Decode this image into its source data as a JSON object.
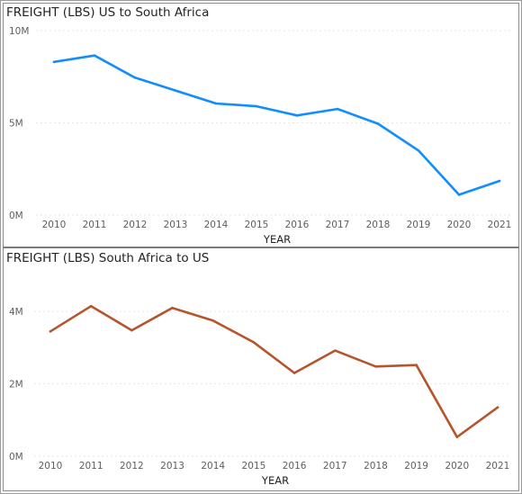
{
  "chart_data": [
    {
      "type": "line",
      "title": "FREIGHT (LBS) US to South Africa",
      "xlabel": "YEAR",
      "ylabel": "",
      "categories": [
        "2010",
        "2011",
        "2012",
        "2013",
        "2014",
        "2015",
        "2016",
        "2017",
        "2018",
        "2019",
        "2020",
        "2021"
      ],
      "series": [
        {
          "values": [
            8300000,
            8650000,
            7450000,
            6750000,
            6050000,
            5900000,
            5400000,
            5750000,
            4950000,
            3500000,
            1100000,
            1850000
          ]
        }
      ],
      "ylim": [
        0,
        10000000
      ],
      "yticks": [
        0,
        5000000,
        10000000
      ],
      "ytick_labels": [
        "0M",
        "5M",
        "10M"
      ],
      "grid": true,
      "color": "#118DFF"
    },
    {
      "type": "line",
      "title": "FREIGHT (LBS) South Africa to US",
      "xlabel": "YEAR",
      "ylabel": "",
      "categories": [
        "2010",
        "2011",
        "2012",
        "2013",
        "2014",
        "2015",
        "2016",
        "2017",
        "2018",
        "2019",
        "2020",
        "2021"
      ],
      "series": [
        {
          "values": [
            3450000,
            4150000,
            3480000,
            4100000,
            3750000,
            3150000,
            2300000,
            2920000,
            2480000,
            2520000,
            530000,
            1350000
          ]
        }
      ],
      "ylim": [
        0,
        5000000
      ],
      "yticks": [
        0,
        2000000,
        4000000
      ],
      "ytick_labels": [
        "0M",
        "2M",
        "4M"
      ],
      "grid": true,
      "color": "#B5552E"
    }
  ]
}
